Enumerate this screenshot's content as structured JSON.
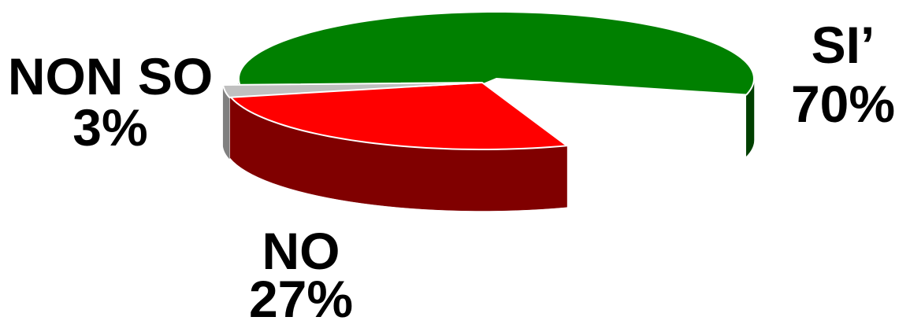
{
  "chart_data": {
    "type": "pie",
    "style": "3d-exploded",
    "categories": [
      "SI’",
      "NO",
      "NON SO"
    ],
    "values": [
      70,
      27,
      3
    ],
    "value_labels": [
      "70%",
      "27%",
      "3%"
    ],
    "colors": {
      "SI’": {
        "top": "#008000",
        "side": "#004000"
      },
      "NO": {
        "top": "#ff0000",
        "side": "#800000"
      },
      "NON SO": {
        "top": "#c0c0c0",
        "side": "#808080"
      }
    },
    "legend": "none"
  }
}
